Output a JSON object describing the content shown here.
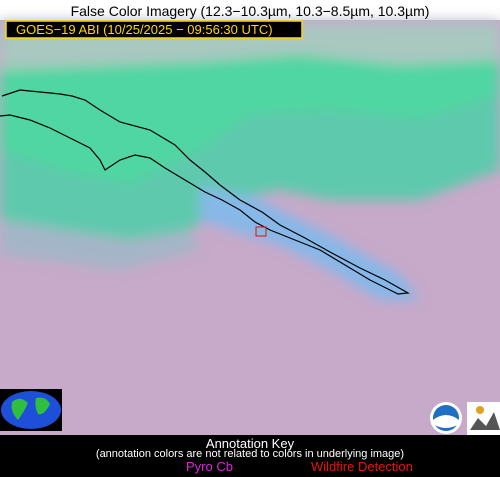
{
  "header": {
    "title": "False Color Imagery (12.3−10.3µm, 10.3−8.5µm, 10.3µm)",
    "subtitle": "GOES−19 ABI (10/25/2025 − 09:56:30 UTC)"
  },
  "annotation_key": {
    "title": "Annotation Key",
    "note": "(annotation colors are not related to colors in underlying image)",
    "items": [
      "Pyro Cb",
      "Wildfire Detection"
    ]
  }
}
